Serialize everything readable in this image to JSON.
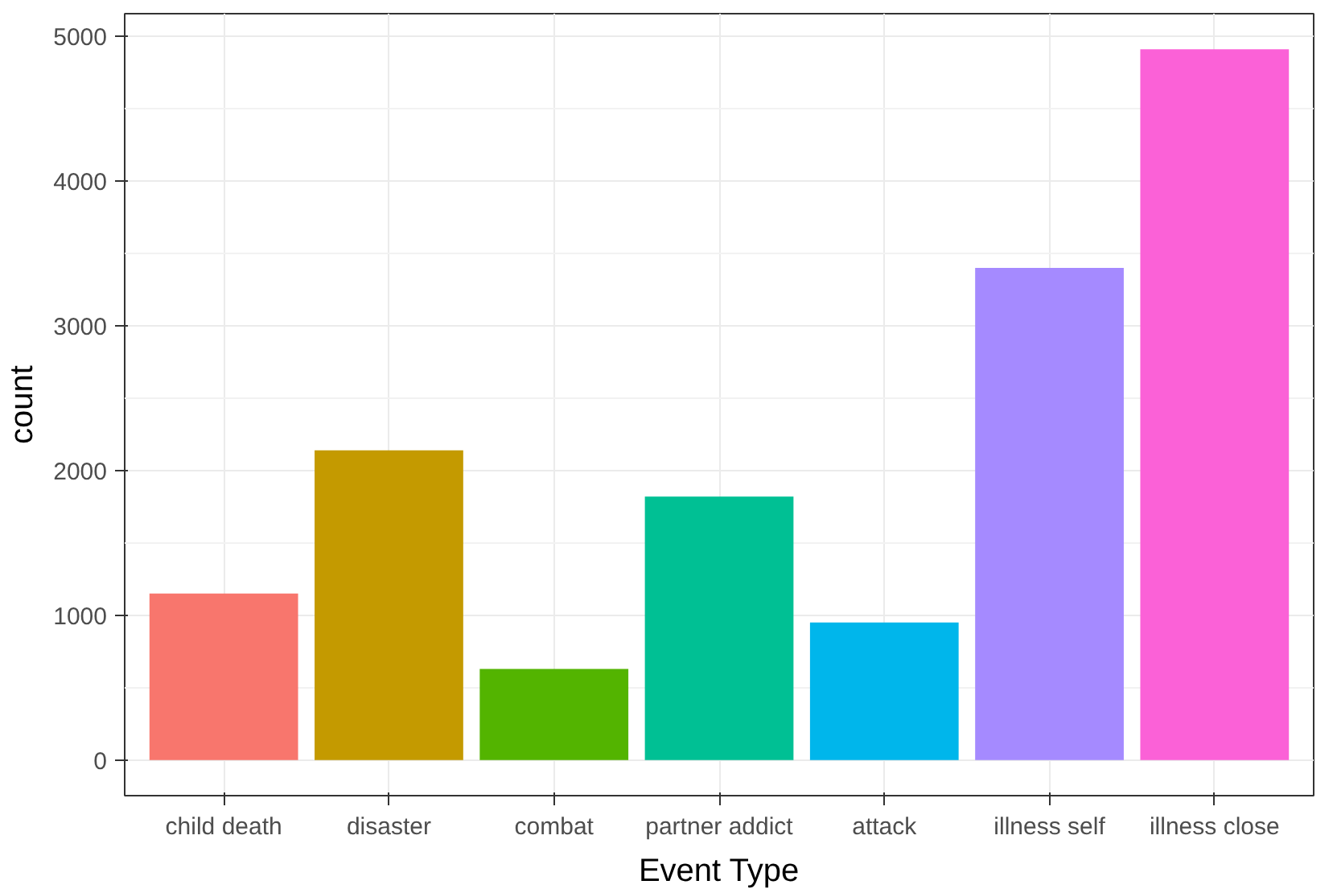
{
  "chart_data": {
    "type": "bar",
    "xlabel": "Event Type",
    "ylabel": "count",
    "categories": [
      "child death",
      "disaster",
      "combat",
      "partner addict",
      "attack",
      "illness self",
      "illness close"
    ],
    "values": [
      1150,
      2140,
      630,
      1820,
      950,
      3400,
      4910
    ],
    "colors": [
      "#f8766d",
      "#c49a00",
      "#53b400",
      "#00c094",
      "#00b6eb",
      "#a58aff",
      "#fb61d7"
    ],
    "ylim": [
      -246,
      5156
    ],
    "yticks": [
      0,
      1000,
      2000,
      3000,
      4000,
      5000
    ],
    "grid": true
  }
}
